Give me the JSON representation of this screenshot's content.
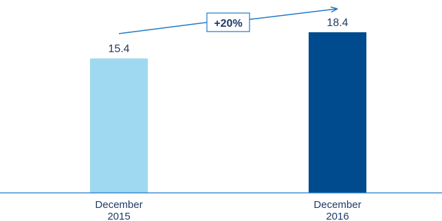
{
  "chart_data": {
    "type": "bar",
    "categories": [
      {
        "line1": "December",
        "line2": "2015"
      },
      {
        "line1": "December",
        "line2": "2016"
      }
    ],
    "values": [
      15.4,
      18.4
    ],
    "value_labels": [
      "15.4",
      "18.4"
    ],
    "colors": [
      "#9fd9f1",
      "#004b8d"
    ],
    "growth_label": "+20%",
    "accent_color": "#1977c9",
    "text_color": "#1f3a66",
    "title": "",
    "xlabel": "",
    "ylabel": "",
    "ylim": [
      0,
      20
    ],
    "grid": false,
    "legend": "none"
  }
}
